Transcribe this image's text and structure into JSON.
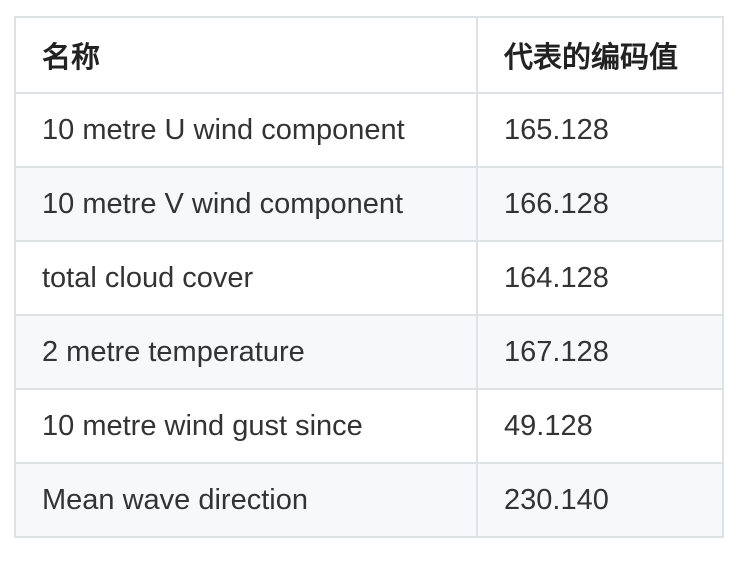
{
  "table": {
    "headers": [
      "名称",
      "代表的编码值"
    ],
    "rows": [
      [
        "10 metre U wind component",
        "165.128"
      ],
      [
        "10 metre V wind component",
        "166.128"
      ],
      [
        "total cloud cover",
        "164.128"
      ],
      [
        "2 metre temperature",
        "167.128"
      ],
      [
        "10 metre wind gust since",
        "49.128"
      ],
      [
        "Mean wave direction",
        "230.140"
      ]
    ]
  },
  "colors": {
    "border": "#dfe2e5",
    "stripe": "#f6f8fa",
    "text": "#333333"
  }
}
